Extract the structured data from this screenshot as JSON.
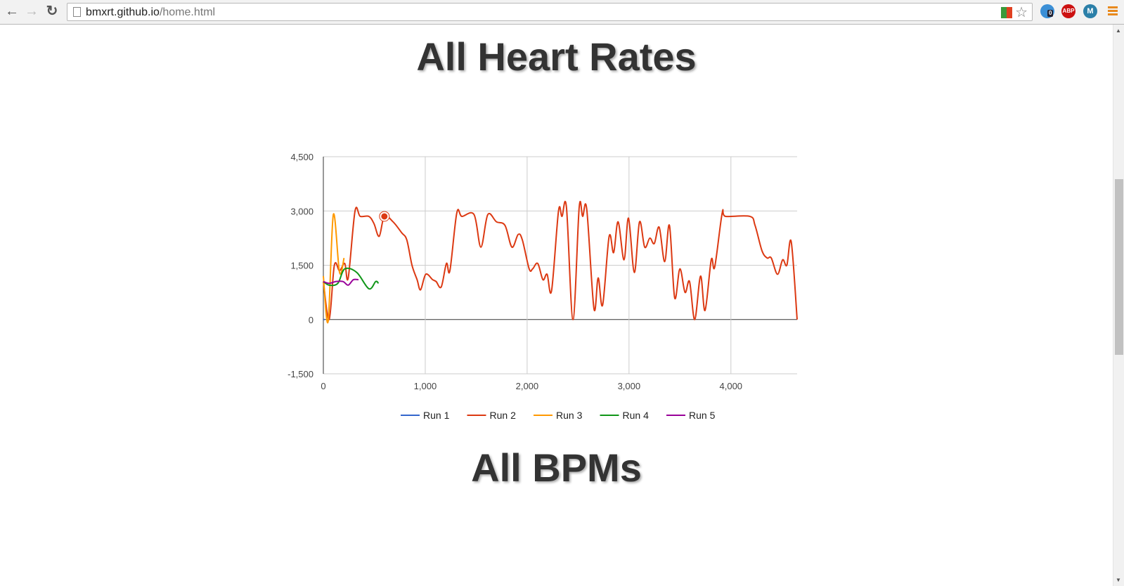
{
  "browser": {
    "url_host": "bmxrt.github.io",
    "url_path": "/home.html",
    "extension_badge": "0",
    "abp_label": "ABP",
    "m_label": "M"
  },
  "page": {
    "title1": "All Heart Rates",
    "title2": "All BPMs"
  },
  "chart_data": {
    "type": "line",
    "title": "All Heart Rates",
    "xlim": [
      0,
      4650
    ],
    "ylim": [
      -1500,
      4500
    ],
    "xticks": [
      0,
      1000,
      2000,
      3000,
      4000
    ],
    "xtick_labels": [
      "0",
      "1,000",
      "2,000",
      "3,000",
      "4,000"
    ],
    "yticks": [
      -1500,
      0,
      1500,
      3000,
      4500
    ],
    "ytick_labels": [
      "-1,500",
      "0",
      "1,500",
      "3,000",
      "4,500"
    ],
    "grid": true,
    "legend_position": "bottom",
    "series": [
      {
        "name": "Run 1",
        "color": "#3366cc",
        "points": [
          [
            0,
            0
          ],
          [
            12,
            0
          ]
        ]
      },
      {
        "name": "Run 2",
        "color": "#dc3912",
        "points": [
          [
            0,
            1050
          ],
          [
            57,
            0
          ],
          [
            108,
            1500
          ],
          [
            159,
            1350
          ],
          [
            210,
            1550
          ],
          [
            244,
            1150
          ],
          [
            311,
            3000
          ],
          [
            362,
            2850
          ],
          [
            447,
            2850
          ],
          [
            497,
            2650
          ],
          [
            548,
            2300
          ],
          [
            599,
            2850
          ],
          [
            684,
            2700
          ],
          [
            768,
            2400
          ],
          [
            819,
            2200
          ],
          [
            870,
            1500
          ],
          [
            920,
            1100
          ],
          [
            954,
            820
          ],
          [
            1005,
            1250
          ],
          [
            1073,
            1100
          ],
          [
            1107,
            1050
          ],
          [
            1157,
            900
          ],
          [
            1208,
            1550
          ],
          [
            1242,
            1350
          ],
          [
            1310,
            2950
          ],
          [
            1360,
            2850
          ],
          [
            1479,
            2900
          ],
          [
            1546,
            2000
          ],
          [
            1614,
            2900
          ],
          [
            1699,
            2700
          ],
          [
            1783,
            2600
          ],
          [
            1851,
            2000
          ],
          [
            1912,
            2350
          ],
          [
            1953,
            2200
          ],
          [
            2020,
            1400
          ],
          [
            2054,
            1400
          ],
          [
            2104,
            1550
          ],
          [
            2155,
            1100
          ],
          [
            2196,
            1250
          ],
          [
            2240,
            800
          ],
          [
            2308,
            3000
          ],
          [
            2342,
            2850
          ],
          [
            2386,
            3100
          ],
          [
            2450,
            0
          ],
          [
            2511,
            3100
          ],
          [
            2545,
            2850
          ],
          [
            2585,
            3050
          ],
          [
            2656,
            300
          ],
          [
            2697,
            1150
          ],
          [
            2741,
            400
          ],
          [
            2805,
            2300
          ],
          [
            2849,
            1850
          ],
          [
            2893,
            2700
          ],
          [
            2951,
            1650
          ],
          [
            2995,
            2800
          ],
          [
            3052,
            1300
          ],
          [
            3103,
            2700
          ],
          [
            3154,
            2000
          ],
          [
            3204,
            2250
          ],
          [
            3248,
            2100
          ],
          [
            3296,
            2550
          ],
          [
            3350,
            1600
          ],
          [
            3397,
            2600
          ],
          [
            3448,
            600
          ],
          [
            3499,
            1400
          ],
          [
            3550,
            750
          ],
          [
            3594,
            1050
          ],
          [
            3645,
            0
          ],
          [
            3702,
            1200
          ],
          [
            3746,
            250
          ],
          [
            3807,
            1650
          ],
          [
            3841,
            1450
          ],
          [
            3915,
            2950
          ],
          [
            3949,
            2850
          ],
          [
            4186,
            2850
          ],
          [
            4237,
            2600
          ],
          [
            4305,
            1900
          ],
          [
            4356,
            1700
          ],
          [
            4396,
            1700
          ],
          [
            4457,
            1250
          ],
          [
            4508,
            1650
          ],
          [
            4549,
            1500
          ],
          [
            4592,
            2150
          ],
          [
            4650,
            0
          ]
        ]
      },
      {
        "name": "Run 3",
        "color": "#ff9900",
        "points": [
          [
            0,
            1200
          ],
          [
            47,
            -50
          ],
          [
            98,
            2900
          ],
          [
            159,
            1300
          ],
          [
            203,
            1700
          ]
        ]
      },
      {
        "name": "Run 4",
        "color": "#109618",
        "points": [
          [
            0,
            1050
          ],
          [
            57,
            950
          ],
          [
            142,
            1000
          ],
          [
            210,
            1400
          ],
          [
            328,
            1300
          ],
          [
            447,
            850
          ],
          [
            514,
            1050
          ],
          [
            541,
            1000
          ]
        ]
      },
      {
        "name": "Run 5",
        "color": "#990099",
        "points": [
          [
            0,
            1050
          ],
          [
            57,
            1000
          ],
          [
            125,
            1050
          ],
          [
            193,
            1050
          ],
          [
            244,
            950
          ],
          [
            294,
            1100
          ],
          [
            345,
            1100
          ]
        ]
      }
    ],
    "highlighted_point": {
      "series": "Run 2",
      "x": 599,
      "y": 2850
    }
  }
}
